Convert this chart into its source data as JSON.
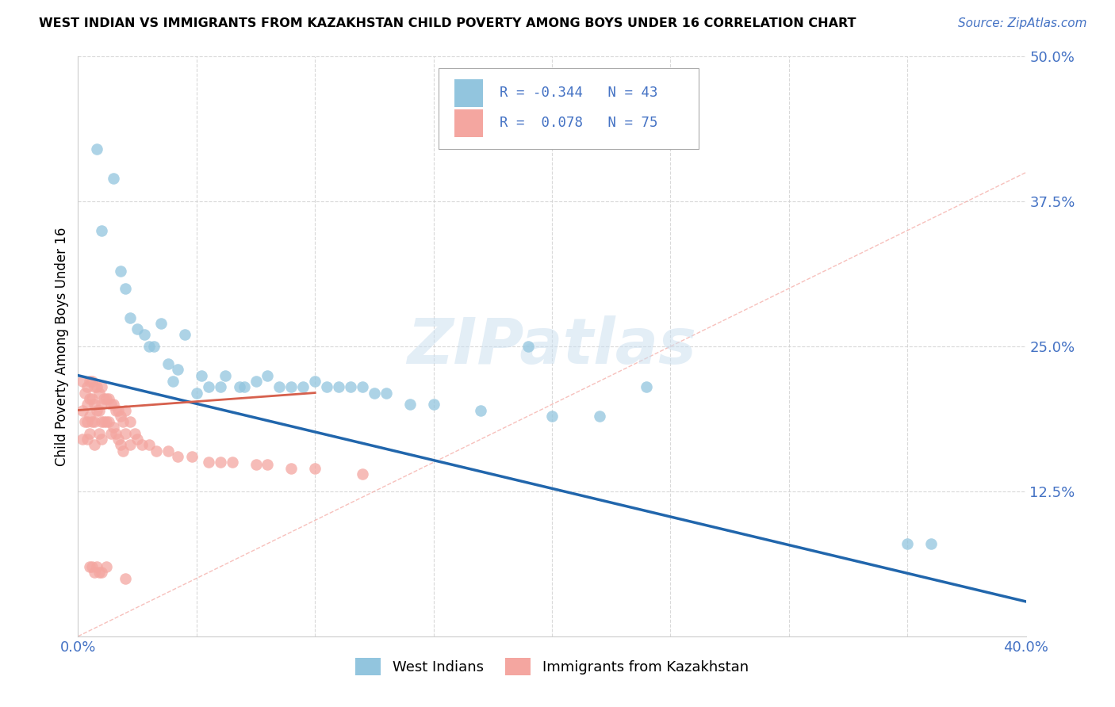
{
  "title": "WEST INDIAN VS IMMIGRANTS FROM KAZAKHSTAN CHILD POVERTY AMONG BOYS UNDER 16 CORRELATION CHART",
  "source": "Source: ZipAtlas.com",
  "ylabel": "Child Poverty Among Boys Under 16",
  "xlim": [
    0.0,
    0.4
  ],
  "ylim": [
    0.0,
    0.5
  ],
  "xticks": [
    0.0,
    0.05,
    0.1,
    0.15,
    0.2,
    0.25,
    0.3,
    0.35,
    0.4
  ],
  "xticklabels": [
    "0.0%",
    "",
    "",
    "",
    "",
    "",
    "",
    "",
    "40.0%"
  ],
  "yticks": [
    0.0,
    0.125,
    0.25,
    0.375,
    0.5
  ],
  "yticklabels": [
    "",
    "12.5%",
    "25.0%",
    "37.5%",
    "50.0%"
  ],
  "blue_color": "#92c5de",
  "pink_color": "#f4a6a0",
  "line_blue_color": "#2166ac",
  "line_pink_color": "#d6604d",
  "ref_line_color": "#f4a6a0",
  "grid_color": "#d0d0d0",
  "watermark": "ZIPatlas",
  "west_indians_x": [
    0.008,
    0.01,
    0.015,
    0.018,
    0.02,
    0.022,
    0.025,
    0.028,
    0.03,
    0.032,
    0.035,
    0.038,
    0.04,
    0.042,
    0.045,
    0.05,
    0.052,
    0.055,
    0.06,
    0.062,
    0.068,
    0.07,
    0.075,
    0.08,
    0.085,
    0.09,
    0.095,
    0.1,
    0.105,
    0.11,
    0.115,
    0.12,
    0.125,
    0.13,
    0.14,
    0.15,
    0.17,
    0.19,
    0.2,
    0.22,
    0.24,
    0.35,
    0.36
  ],
  "west_indians_y": [
    0.42,
    0.35,
    0.395,
    0.315,
    0.3,
    0.275,
    0.265,
    0.26,
    0.25,
    0.25,
    0.27,
    0.235,
    0.22,
    0.23,
    0.26,
    0.21,
    0.225,
    0.215,
    0.215,
    0.225,
    0.215,
    0.215,
    0.22,
    0.225,
    0.215,
    0.215,
    0.215,
    0.22,
    0.215,
    0.215,
    0.215,
    0.215,
    0.21,
    0.21,
    0.2,
    0.2,
    0.195,
    0.25,
    0.19,
    0.19,
    0.215,
    0.08,
    0.08
  ],
  "kazakhstan_x": [
    0.002,
    0.002,
    0.002,
    0.003,
    0.003,
    0.004,
    0.004,
    0.004,
    0.004,
    0.005,
    0.005,
    0.005,
    0.005,
    0.005,
    0.006,
    0.006,
    0.006,
    0.006,
    0.007,
    0.007,
    0.007,
    0.007,
    0.007,
    0.008,
    0.008,
    0.008,
    0.009,
    0.009,
    0.009,
    0.009,
    0.01,
    0.01,
    0.01,
    0.01,
    0.01,
    0.011,
    0.011,
    0.012,
    0.012,
    0.012,
    0.013,
    0.013,
    0.014,
    0.014,
    0.015,
    0.015,
    0.016,
    0.016,
    0.017,
    0.017,
    0.018,
    0.018,
    0.019,
    0.019,
    0.02,
    0.02,
    0.02,
    0.022,
    0.022,
    0.024,
    0.025,
    0.027,
    0.03,
    0.033,
    0.038,
    0.042,
    0.048,
    0.055,
    0.06,
    0.065,
    0.075,
    0.08,
    0.09,
    0.1,
    0.12
  ],
  "kazakhstan_y": [
    0.22,
    0.195,
    0.17,
    0.21,
    0.185,
    0.215,
    0.2,
    0.185,
    0.17,
    0.22,
    0.205,
    0.19,
    0.175,
    0.06,
    0.22,
    0.205,
    0.185,
    0.06,
    0.215,
    0.2,
    0.185,
    0.165,
    0.055,
    0.215,
    0.195,
    0.06,
    0.21,
    0.195,
    0.175,
    0.055,
    0.215,
    0.2,
    0.185,
    0.17,
    0.055,
    0.205,
    0.185,
    0.205,
    0.185,
    0.06,
    0.205,
    0.185,
    0.2,
    0.175,
    0.2,
    0.18,
    0.195,
    0.175,
    0.195,
    0.17,
    0.19,
    0.165,
    0.185,
    0.16,
    0.195,
    0.175,
    0.05,
    0.185,
    0.165,
    0.175,
    0.17,
    0.165,
    0.165,
    0.16,
    0.16,
    0.155,
    0.155,
    0.15,
    0.15,
    0.15,
    0.148,
    0.148,
    0.145,
    0.145,
    0.14
  ],
  "blue_trendline_x": [
    0.0,
    0.4
  ],
  "blue_trendline_y": [
    0.225,
    0.03
  ],
  "pink_trendline_x": [
    0.0,
    0.1
  ],
  "pink_trendline_y": [
    0.195,
    0.21
  ],
  "ref_line_x": [
    0.0,
    0.5
  ],
  "ref_line_y": [
    0.0,
    0.5
  ]
}
